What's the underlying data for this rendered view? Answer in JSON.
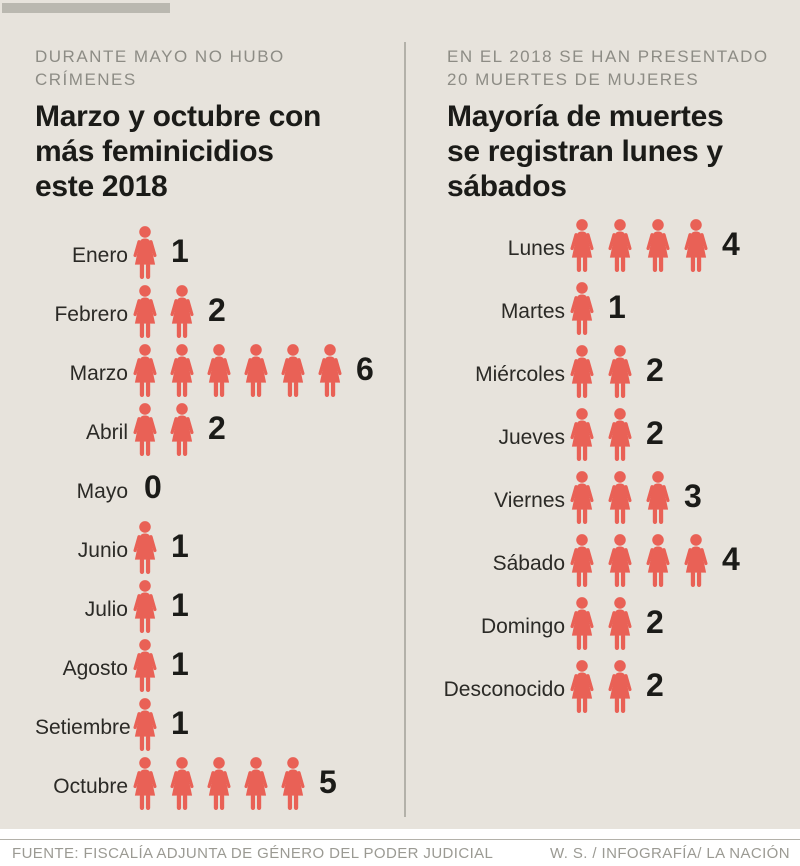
{
  "colors": {
    "background": "#e7e3dc",
    "accent": "#e96156",
    "ink": "#1b1b18",
    "label": "#2b2a26",
    "kicker": "#8d8c85",
    "divider": "#b3b1a9",
    "top_bar": "#bab8b0",
    "footer_bg": "#ffffff",
    "footer_text": "#9b9a93"
  },
  "panels": [
    {
      "kicker_lines": [
        "DURANTE MAYO NO HUBO",
        "CRÍMENES"
      ],
      "title_lines": [
        "Marzo y octubre con",
        "más feminicidios",
        "este 2018"
      ],
      "rows": [
        {
          "label": "Enero",
          "value": 1
        },
        {
          "label": "Febrero",
          "value": 2
        },
        {
          "label": "Marzo",
          "value": 6
        },
        {
          "label": "Abril",
          "value": 2
        },
        {
          "label": "Mayo",
          "value": 0
        },
        {
          "label": "Junio",
          "value": 1
        },
        {
          "label": "Julio",
          "value": 1
        },
        {
          "label": "Agosto",
          "value": 1
        },
        {
          "label": "Setiembre",
          "value": 1
        },
        {
          "label": "Octubre",
          "value": 5
        }
      ]
    },
    {
      "kicker_lines": [
        "EN EL 2018 SE HAN PRESENTADO",
        "20 MUERTES DE MUJERES"
      ],
      "title_lines": [
        "Mayoría de muertes",
        "se registran lunes y",
        "sábados"
      ],
      "rows": [
        {
          "label": "Lunes",
          "value": 4
        },
        {
          "label": "Martes",
          "value": 1
        },
        {
          "label": "Miércoles",
          "value": 2
        },
        {
          "label": "Jueves",
          "value": 2
        },
        {
          "label": "Viernes",
          "value": 3
        },
        {
          "label": "Sábado",
          "value": 4
        },
        {
          "label": "Domingo",
          "value": 2
        },
        {
          "label": "Desconocido",
          "value": 2
        }
      ]
    }
  ],
  "footer": {
    "source": "FUENTE: FISCALÍA ADJUNTA DE GÉNERO DEL PODER JUDICIAL",
    "credit": "W. S. / INFOGRAFÍA/ LA NACIÓN"
  },
  "chart_data": [
    {
      "type": "bar",
      "variant": "pictogram",
      "icon": "woman-pictogram",
      "orientation": "horizontal",
      "kicker": "DURANTE MAYO NO HUBO CRÍMENES",
      "title": "Marzo y octubre con más feminicidios este 2018",
      "categories": [
        "Enero",
        "Febrero",
        "Marzo",
        "Abril",
        "Mayo",
        "Junio",
        "Julio",
        "Agosto",
        "Setiembre",
        "Octubre"
      ],
      "values": [
        1,
        2,
        6,
        2,
        0,
        1,
        1,
        1,
        1,
        5
      ],
      "value_range": [
        0,
        6
      ],
      "data_labels": true,
      "grid": false,
      "legend": "none"
    },
    {
      "type": "bar",
      "variant": "pictogram",
      "icon": "woman-pictogram",
      "orientation": "horizontal",
      "kicker": "EN EL 2018 SE HAN PRESENTADO 20 MUERTES DE MUJERES",
      "title": "Mayoría de muertes se registran lunes y sábados",
      "categories": [
        "Lunes",
        "Martes",
        "Miércoles",
        "Jueves",
        "Viernes",
        "Sábado",
        "Domingo",
        "Desconocido"
      ],
      "values": [
        4,
        1,
        2,
        2,
        3,
        4,
        2,
        2
      ],
      "value_range": [
        0,
        4
      ],
      "data_labels": true,
      "grid": false,
      "legend": "none"
    }
  ]
}
